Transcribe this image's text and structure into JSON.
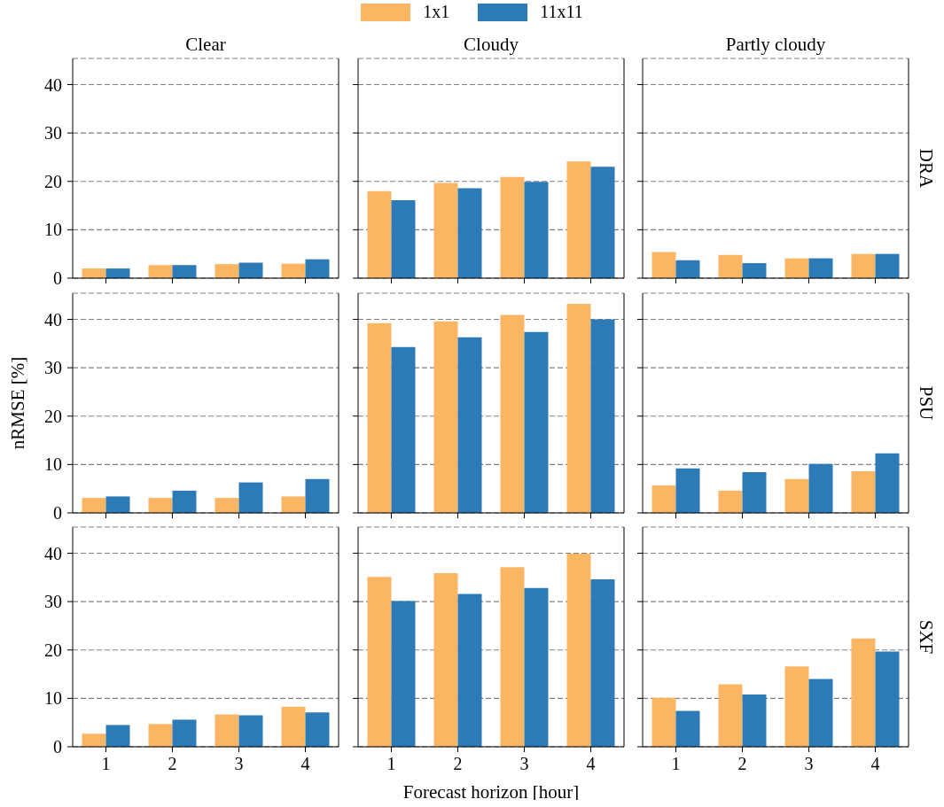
{
  "chart_data": [
    {
      "type": "bar",
      "title": "Clear",
      "categories": [
        "1",
        "2",
        "3",
        "4"
      ],
      "ylim": [
        0,
        45.4
      ],
      "yticks": [
        0,
        10,
        20,
        30,
        40
      ],
      "grid": "y",
      "legend": "top",
      "tick_labels": "y",
      "series": [
        {
          "name": "1x1",
          "color": "#fbb664",
          "values": [
            2.0,
            2.7,
            2.9,
            3.0
          ]
        },
        {
          "name": "11x11",
          "color": "#2d7bb6",
          "values": [
            2.0,
            2.7,
            3.2,
            3.9
          ]
        }
      ]
    },
    {
      "type": "bar",
      "title": "Cloudy",
      "categories": [
        "1",
        "2",
        "3",
        "4"
      ],
      "ylim": [
        0,
        45.4
      ],
      "yticks": [
        0,
        10,
        20,
        30,
        40
      ],
      "grid": "y",
      "tick_labels": false,
      "series": [
        {
          "color": "#fbb664",
          "values": [
            18.0,
            19.7,
            20.9,
            24.1
          ]
        },
        {
          "color": "#2d7bb6",
          "values": [
            16.1,
            18.6,
            19.9,
            23.0
          ]
        }
      ]
    },
    {
      "type": "bar",
      "title": "Partly cloudy",
      "y2label": "DRA",
      "categories": [
        "1",
        "2",
        "3",
        "4"
      ],
      "ylim": [
        0,
        45.4
      ],
      "yticks": [
        0,
        10,
        20,
        30,
        40
      ],
      "grid": "y",
      "tick_labels": false,
      "series": [
        {
          "color": "#fbb664",
          "values": [
            5.4,
            4.8,
            4.1,
            5.0
          ]
        },
        {
          "color": "#2d7bb6",
          "values": [
            3.7,
            3.1,
            4.1,
            5.0
          ]
        }
      ]
    },
    {
      "type": "bar",
      "ylabel": "nRMSE [%]",
      "categories": [
        "1",
        "2",
        "3",
        "4"
      ],
      "ylim": [
        0,
        45.4
      ],
      "yticks": [
        0,
        10,
        20,
        30,
        40
      ],
      "grid": "y",
      "tick_labels": "y",
      "series": [
        {
          "color": "#fbb664",
          "values": [
            3.1,
            3.1,
            3.1,
            3.4
          ]
        },
        {
          "color": "#2d7bb6",
          "values": [
            3.4,
            4.6,
            6.3,
            7.0
          ]
        }
      ]
    },
    {
      "type": "bar",
      "categories": [
        "1",
        "2",
        "3",
        "4"
      ],
      "ylim": [
        0,
        45.4
      ],
      "yticks": [
        0,
        10,
        20,
        30,
        40
      ],
      "grid": "y",
      "tick_labels": false,
      "series": [
        {
          "color": "#fbb664",
          "values": [
            39.2,
            39.6,
            40.9,
            43.2
          ]
        },
        {
          "color": "#2d7bb6",
          "values": [
            34.3,
            36.3,
            37.4,
            40.0
          ]
        }
      ]
    },
    {
      "type": "bar",
      "y2label": "PSU",
      "categories": [
        "1",
        "2",
        "3",
        "4"
      ],
      "ylim": [
        0,
        45.4
      ],
      "yticks": [
        0,
        10,
        20,
        30,
        40
      ],
      "grid": "y",
      "tick_labels": false,
      "series": [
        {
          "color": "#fbb664",
          "values": [
            5.7,
            4.6,
            7.0,
            8.6
          ]
        },
        {
          "color": "#2d7bb6",
          "values": [
            9.2,
            8.4,
            10.1,
            12.3
          ]
        }
      ]
    },
    {
      "type": "bar",
      "categories": [
        "1",
        "2",
        "3",
        "4"
      ],
      "ylim": [
        0,
        45.4
      ],
      "yticks": [
        0,
        10,
        20,
        30,
        40
      ],
      "grid": "y",
      "series": [
        {
          "color": "#fbb664",
          "values": [
            2.7,
            4.7,
            6.7,
            8.3
          ]
        },
        {
          "color": "#2d7bb6",
          "values": [
            4.5,
            5.6,
            6.5,
            7.1
          ]
        }
      ]
    },
    {
      "type": "bar",
      "xlabel": "Forecast horizon [hour]",
      "categories": [
        "1",
        "2",
        "3",
        "4"
      ],
      "ylim": [
        0,
        45.4
      ],
      "yticks": [
        0,
        10,
        20,
        30,
        40
      ],
      "grid": "y",
      "tick_labels": "x",
      "series": [
        {
          "color": "#fbb664",
          "values": [
            35.1,
            35.9,
            37.1,
            39.9
          ]
        },
        {
          "color": "#2d7bb6",
          "values": [
            30.1,
            31.6,
            32.8,
            34.6
          ]
        }
      ]
    },
    {
      "type": "bar",
      "y2label": "SXF",
      "categories": [
        "1",
        "2",
        "3",
        "4"
      ],
      "ylim": [
        0,
        45.4
      ],
      "yticks": [
        0,
        10,
        20,
        30,
        40
      ],
      "grid": "y",
      "tick_labels": "x",
      "series": [
        {
          "color": "#fbb664",
          "values": [
            10.1,
            12.9,
            16.6,
            22.4
          ]
        },
        {
          "color": "#2d7bb6",
          "values": [
            7.4,
            10.8,
            14.0,
            19.7
          ]
        }
      ]
    }
  ]
}
